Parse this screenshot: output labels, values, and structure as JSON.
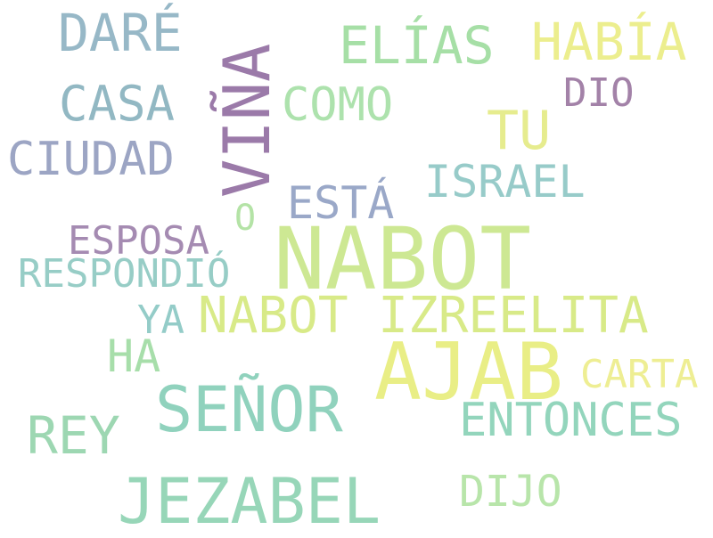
{
  "words": [
    {
      "key": "nabot",
      "text": "NABOT",
      "color": "#cde893"
    },
    {
      "key": "ajab",
      "text": "AJAB",
      "color": "#e9ee86"
    },
    {
      "key": "vina",
      "text": "VIÑA",
      "color": "#9b7aa9"
    },
    {
      "key": "senor",
      "text": "SEÑOR",
      "color": "#90d2bd"
    },
    {
      "key": "jezabel",
      "text": "JEZABEL",
      "color": "#97d6b8"
    },
    {
      "key": "nabot-izreelita",
      "text": "NABOT IZREELITA",
      "color": "#d8ea88"
    },
    {
      "key": "entonces",
      "text": "ENTONCES",
      "color": "#93d5bc"
    },
    {
      "key": "dare",
      "text": "DARÉ",
      "color": "#97b8c7"
    },
    {
      "key": "habia",
      "text": "HABÍA",
      "color": "#ecee8e"
    },
    {
      "key": "elias",
      "text": "ELÍAS",
      "color": "#a6dfa6"
    },
    {
      "key": "casa",
      "text": "CASA",
      "color": "#92b8c3"
    },
    {
      "key": "ciudad",
      "text": "CIUDAD",
      "color": "#9ca5c4"
    },
    {
      "key": "como",
      "text": "COMO",
      "color": "#ade2ad"
    },
    {
      "key": "tu",
      "text": "TU",
      "color": "#e6ec8e"
    },
    {
      "key": "israel",
      "text": "ISRAEL",
      "color": "#97cbc9"
    },
    {
      "key": "dio",
      "text": "DIO",
      "color": "#a382a8"
    },
    {
      "key": "esta",
      "text": "ESTÁ",
      "color": "#9aa8c8"
    },
    {
      "key": "o",
      "text": "O",
      "color": "#b4e3a6"
    },
    {
      "key": "esposa",
      "text": "ESPOSA",
      "color": "#a58bb2"
    },
    {
      "key": "respondio",
      "text": "RESPONDIÓ",
      "color": "#97cdc6"
    },
    {
      "key": "ya",
      "text": "YA",
      "color": "#94ccc8"
    },
    {
      "key": "ha",
      "text": "HA",
      "color": "#a7deaa"
    },
    {
      "key": "carta",
      "text": "CARTA",
      "color": "#eeee93"
    },
    {
      "key": "rey",
      "text": "REY",
      "color": "#9dd7b2"
    },
    {
      "key": "dijo",
      "text": "DIJO",
      "color": "#b8e5aa"
    }
  ]
}
